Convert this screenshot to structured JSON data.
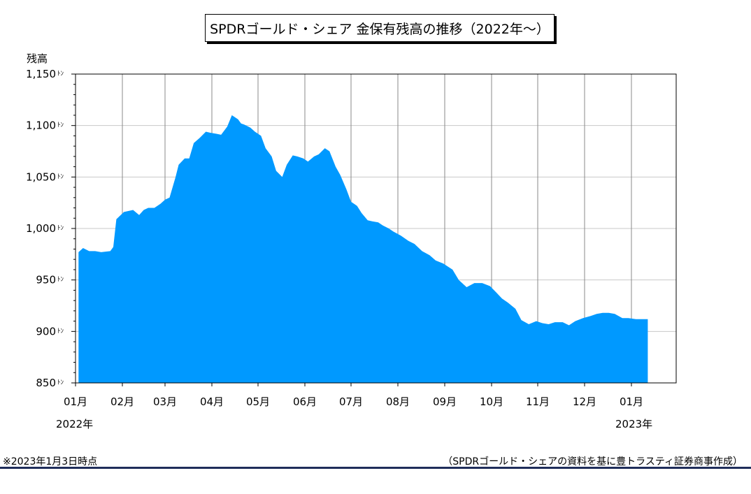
{
  "chart_data": {
    "type": "area",
    "title": "SPDRゴールド・シェア 金保有残高の推移（2022年～）",
    "ylabel": "残高",
    "y_unit": "ﾄﾝ",
    "ylim": [
      850,
      1150
    ],
    "y_ticks": [
      850,
      900,
      950,
      1000,
      1050,
      1100,
      1150
    ],
    "y_tick_labels": [
      "850",
      "900",
      "950",
      "1,000",
      "1,050",
      "1,100",
      "1,150"
    ],
    "x_ticks": [
      "01月",
      "02月",
      "03月",
      "04月",
      "05月",
      "06月",
      "07月",
      "08月",
      "09月",
      "10月",
      "11月",
      "12月",
      "01月"
    ],
    "x_start_year": "2022年",
    "x_end_year": "2023年",
    "grid": true,
    "color": "#0099ff",
    "series": [
      {
        "x": [
          "2022-01-03",
          "2022-01-06",
          "2022-01-10",
          "2022-01-14",
          "2022-01-18",
          "2022-01-24",
          "2022-01-26",
          "2022-01-28",
          "2022-02-02",
          "2022-02-08",
          "2022-02-12",
          "2022-02-15",
          "2022-02-18",
          "2022-02-22",
          "2022-02-26",
          "2022-03-01",
          "2022-03-04",
          "2022-03-08",
          "2022-03-10",
          "2022-03-14",
          "2022-03-17",
          "2022-03-20",
          "2022-03-24",
          "2022-03-28",
          "2022-03-31",
          "2022-04-04",
          "2022-04-07",
          "2022-04-11",
          "2022-04-14",
          "2022-04-18",
          "2022-04-20",
          "2022-04-22",
          "2022-04-26",
          "2022-04-29",
          "2022-05-03",
          "2022-05-06",
          "2022-05-10",
          "2022-05-13",
          "2022-05-17",
          "2022-05-20",
          "2022-05-24",
          "2022-05-27",
          "2022-05-31",
          "2022-06-03",
          "2022-06-07",
          "2022-06-10",
          "2022-06-14",
          "2022-06-17",
          "2022-06-21",
          "2022-06-24",
          "2022-06-28",
          "2022-07-01",
          "2022-07-05",
          "2022-07-08",
          "2022-07-12",
          "2022-07-15",
          "2022-07-19",
          "2022-07-22",
          "2022-07-26",
          "2022-07-29",
          "2022-08-03",
          "2022-08-08",
          "2022-08-12",
          "2022-08-17",
          "2022-08-22",
          "2022-08-26",
          "2022-08-31",
          "2022-09-06",
          "2022-09-10",
          "2022-09-15",
          "2022-09-20",
          "2022-09-25",
          "2022-09-30",
          "2022-10-04",
          "2022-10-08",
          "2022-10-12",
          "2022-10-17",
          "2022-10-21",
          "2022-10-26",
          "2022-10-31",
          "2022-11-04",
          "2022-11-08",
          "2022-11-12",
          "2022-11-17",
          "2022-11-21",
          "2022-11-25",
          "2022-11-30",
          "2022-12-05",
          "2022-12-09",
          "2022-12-13",
          "2022-12-17",
          "2022-12-21",
          "2022-12-26",
          "2022-12-30",
          "2023-01-04",
          "2023-01-08",
          "2023-01-12"
        ],
        "values": [
          977,
          981,
          978,
          978,
          977,
          978,
          982,
          1009,
          1016,
          1018,
          1013,
          1018,
          1020,
          1020,
          1024,
          1028,
          1030,
          1050,
          1062,
          1068,
          1068,
          1083,
          1088,
          1094,
          1093,
          1092,
          1091,
          1099,
          1110,
          1106,
          1102,
          1101,
          1098,
          1094,
          1090,
          1078,
          1070,
          1056,
          1050,
          1062,
          1071,
          1070,
          1068,
          1065,
          1070,
          1072,
          1078,
          1075,
          1060,
          1052,
          1038,
          1026,
          1022,
          1015,
          1008,
          1007,
          1006,
          1003,
          1000,
          997,
          993,
          988,
          985,
          978,
          974,
          969,
          966,
          960,
          950,
          943,
          947,
          947,
          944,
          938,
          932,
          928,
          922,
          911,
          907,
          910,
          908,
          907,
          909,
          909,
          906,
          910,
          913,
          915,
          917,
          918,
          918,
          917,
          913,
          913,
          912,
          912,
          912
        ]
      }
    ]
  },
  "title": "SPDRゴールド・シェア 金保有残高の推移（2022年～）",
  "ylabel": "残高",
  "year_start": "2022年",
  "year_end": "2023年",
  "footnote_left": "※2023年1月3日時点",
  "footnote_right": "（SPDRゴールド・シェアの資料を基に豊トラスティ証券商事作成）"
}
